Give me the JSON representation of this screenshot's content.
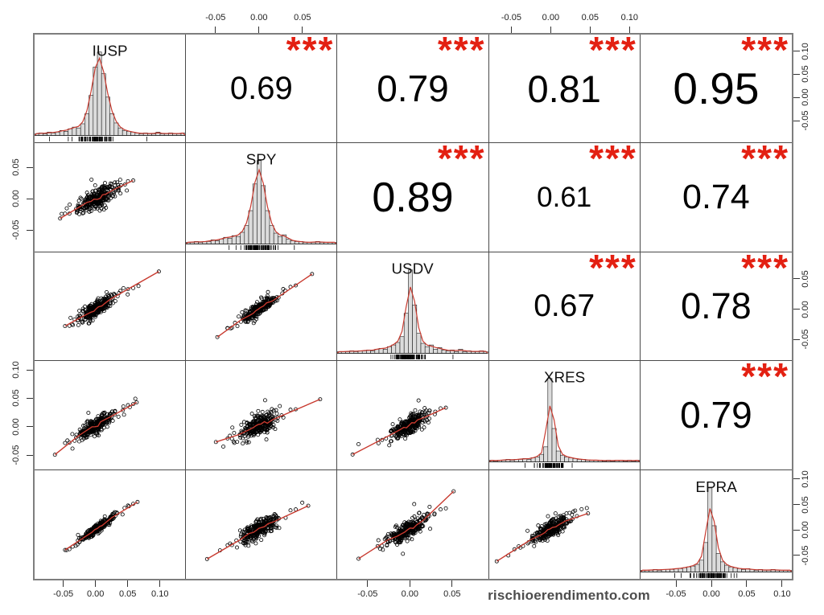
{
  "chart_data": {
    "type": "scatter",
    "subtype": "scatterplot-matrix-pairs",
    "diagonal": "histogram-with-density-and-rug",
    "upper_triangle": "pearson-correlation-with-significance",
    "lower_triangle": "scatter-with-lowess-line",
    "variables": [
      "IUSP",
      "SPY",
      "USDV",
      "XRES",
      "EPRA"
    ],
    "correlations": {
      "IUSP_SPY": 0.69,
      "IUSP_USDV": 0.79,
      "IUSP_XRES": 0.81,
      "IUSP_EPRA": 0.95,
      "SPY_USDV": 0.89,
      "SPY_XRES": 0.61,
      "SPY_EPRA": 0.74,
      "USDV_XRES": 0.67,
      "USDV_EPRA": 0.78,
      "XRES_EPRA": 0.79
    },
    "significance": "***",
    "ranges": {
      "IUSP": [
        -0.097,
        0.139
      ],
      "SPY": [
        -0.085,
        0.09
      ],
      "USDV": [
        -0.086,
        0.094
      ],
      "XRES": [
        -0.078,
        0.115
      ],
      "EPRA": [
        -0.099,
        0.116
      ]
    },
    "axes": [
      {
        "side": "top",
        "index": 1,
        "ticks": [
          -0.05,
          0.0,
          0.05
        ]
      },
      {
        "side": "top",
        "index": 3,
        "ticks": [
          -0.05,
          0.0,
          0.05,
          0.1
        ]
      },
      {
        "side": "right",
        "index": 0,
        "ticks": [
          -0.05,
          0.0,
          0.05,
          0.1
        ]
      },
      {
        "side": "right",
        "index": 2,
        "ticks": [
          -0.05,
          0.0,
          0.05
        ]
      },
      {
        "side": "right",
        "index": 4,
        "ticks": [
          -0.05,
          0.0,
          0.05,
          0.1
        ]
      },
      {
        "side": "bottom",
        "index": 0,
        "ticks": [
          -0.05,
          0.0,
          0.05,
          0.1
        ]
      },
      {
        "side": "bottom",
        "index": 2,
        "ticks": [
          -0.05,
          0.0,
          0.05
        ]
      },
      {
        "side": "bottom",
        "index": 4,
        "ticks": [
          -0.05,
          0.0,
          0.05,
          0.1
        ]
      },
      {
        "side": "left",
        "index": 1,
        "ticks": [
          -0.05,
          0.0,
          0.05
        ]
      },
      {
        "side": "left",
        "index": 3,
        "ticks": [
          -0.05,
          0.0,
          0.05,
          0.1
        ]
      }
    ],
    "histograms": {
      "IUSP": [
        2,
        3,
        2,
        4,
        3,
        4,
        6,
        5,
        8,
        10,
        9,
        14,
        26,
        48,
        82,
        100,
        74,
        46,
        26,
        15,
        9,
        6,
        5,
        4,
        3,
        2,
        3,
        2,
        2,
        4,
        2,
        2,
        3,
        2,
        2,
        3
      ],
      "SPY": [
        2,
        2,
        3,
        2,
        3,
        3,
        5,
        4,
        6,
        8,
        7,
        10,
        9,
        14,
        22,
        40,
        72,
        100,
        70,
        40,
        22,
        13,
        9,
        11,
        6,
        4,
        3,
        3,
        2,
        2,
        2,
        3,
        2,
        2,
        2,
        2
      ],
      "USDV": [
        2,
        2,
        2,
        3,
        2,
        3,
        3,
        4,
        3,
        5,
        6,
        5,
        8,
        10,
        13,
        20,
        48,
        100,
        58,
        24,
        12,
        8,
        10,
        5,
        7,
        4,
        3,
        4,
        2,
        5,
        2,
        3,
        2,
        2,
        3,
        2
      ],
      "XRES": [
        2,
        1,
        2,
        2,
        3,
        2,
        3,
        3,
        4,
        3,
        5,
        6,
        9,
        18,
        100,
        40,
        13,
        8,
        6,
        5,
        4,
        3,
        3,
        2,
        2,
        2,
        2,
        1,
        2,
        1,
        2,
        2,
        1,
        2,
        1,
        2
      ],
      "EPRA": [
        2,
        2,
        2,
        3,
        2,
        3,
        3,
        3,
        4,
        4,
        5,
        6,
        7,
        9,
        14,
        35,
        100,
        55,
        22,
        12,
        8,
        6,
        5,
        4,
        3,
        4,
        3,
        2,
        3,
        2,
        2,
        3,
        2,
        2,
        2,
        2
      ]
    },
    "points_per_panel": 290
  },
  "watermark": "rischioerendimento.com",
  "colors": {
    "lowess_red": "#c8392e",
    "stars_red": "#e32012",
    "bar_fill": "#dcdcdc",
    "bar_stroke": "#1a1a1a",
    "inner_border": "#4a4a4a",
    "outer_border": "#7e7e7e",
    "tick_label": "#222222",
    "watermark_gray": "#4d4d4d",
    "corr_text": "#000000"
  }
}
